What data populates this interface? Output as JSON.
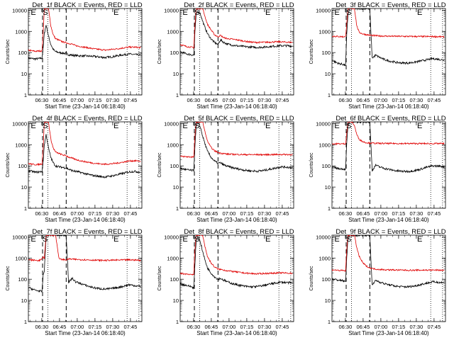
{
  "common": {
    "xlabel": "Start Time (23-Jan-14 06:18:40)",
    "ylabel": "Counts/sec",
    "xticks": [
      "06:30",
      "06:45",
      "07:00",
      "07:15",
      "07:30",
      "07:45"
    ],
    "xtick_minutes": [
      11.33,
      26.33,
      41.33,
      56.33,
      71.33,
      86.33
    ],
    "yticks": [
      "1",
      "10",
      "100",
      "1000",
      "10000"
    ],
    "yscale": "log",
    "ylim": [
      1,
      12000
    ],
    "xlim_minutes": [
      0,
      96
    ],
    "markers": {
      "dotted": [
        16.5,
        83.5,
        93.5
      ],
      "dashed": [
        12.0,
        32.0
      ]
    },
    "letters": [
      {
        "text": "E",
        "x": 2
      },
      {
        "text": "S",
        "x": 12
      },
      {
        "text": "E",
        "x": 72
      }
    ],
    "colors": {
      "black_series": "#000000",
      "red_series": "#e00000"
    }
  },
  "chart_data": [
    {
      "type": "line",
      "title": "Det_1f BLACK = Events, RED = LLD",
      "x_minutes": [
        0,
        3,
        6,
        9,
        11.5,
        12.5,
        13.5,
        15,
        17,
        19,
        21,
        23,
        26,
        29,
        32,
        34,
        37,
        40,
        45,
        50,
        55,
        60,
        65,
        70,
        75,
        80,
        85,
        90,
        95
      ],
      "series": [
        {
          "name": "Events",
          "color": "#000000",
          "values": [
            55,
            52,
            50,
            52,
            55,
            150,
            800,
            2000,
            600,
            240,
            140,
            110,
            100,
            95,
            90,
            80,
            75,
            72,
            70,
            68,
            66,
            62,
            58,
            62,
            70,
            78,
            85,
            80,
            75
          ]
        },
        {
          "name": "LLD",
          "color": "#e00000",
          "values": [
            130,
            120,
            115,
            118,
            120,
            800,
            12000,
            12000,
            12000,
            1800,
            700,
            450,
            380,
            320,
            290,
            270,
            250,
            210,
            190,
            170,
            150,
            140,
            130,
            140,
            150,
            165,
            180,
            180,
            170
          ]
        }
      ]
    },
    {
      "type": "line",
      "title": "Det_2f BLACK = Events, RED = LLD",
      "x_minutes": [
        0,
        3,
        6,
        9,
        11.5,
        12.5,
        13.5,
        15,
        17,
        19,
        21,
        23,
        26,
        29,
        32,
        34,
        37,
        40,
        45,
        50,
        55,
        60,
        65,
        70,
        75,
        80,
        85,
        90,
        95
      ],
      "series": [
        {
          "name": "Events",
          "color": "#000000",
          "values": [
            110,
            95,
            85,
            80,
            75,
            900,
            6000,
            9000,
            7000,
            3000,
            1500,
            800,
            450,
            300,
            240,
            400,
            300,
            250,
            220,
            200,
            190,
            180,
            175,
            180,
            190,
            200,
            210,
            210,
            200
          ]
        },
        {
          "name": "LLD",
          "color": "#e00000",
          "values": [
            240,
            210,
            190,
            180,
            170,
            2000,
            12000,
            12000,
            12000,
            12000,
            5000,
            2200,
            1200,
            700,
            550,
            650,
            500,
            450,
            420,
            380,
            340,
            310,
            300,
            305,
            310,
            320,
            320,
            310,
            300
          ]
        }
      ]
    },
    {
      "type": "line",
      "title": "Det_3f BLACK = Events, RED = LLD",
      "x_minutes": [
        0,
        3,
        6,
        9,
        11.5,
        12.5,
        13.5,
        15,
        17,
        19,
        21,
        23,
        26,
        29,
        32,
        34,
        37,
        40,
        45,
        50,
        55,
        60,
        65,
        70,
        75,
        80,
        85,
        90,
        95
      ],
      "series": [
        {
          "name": "Events",
          "color": "#000000",
          "values": [
            45,
            35,
            30,
            28,
            25,
            700,
            6000,
            12000,
            12000,
            12000,
            12000,
            12000,
            12000,
            12000,
            12000,
            55,
            75,
            60,
            45,
            38,
            34,
            32,
            32,
            35,
            40,
            45,
            52,
            48,
            44
          ]
        },
        {
          "name": "LLD",
          "color": "#e00000",
          "values": [
            600,
            580,
            570,
            560,
            560,
            2500,
            12000,
            12000,
            12000,
            12000,
            1800,
            900,
            760,
            700,
            660,
            640,
            620,
            610,
            600,
            590,
            585,
            580,
            575,
            575,
            570,
            570,
            570,
            560,
            550
          ]
        }
      ]
    },
    {
      "type": "line",
      "title": "Det_4f BLACK = Events, RED = LLD",
      "x_minutes": [
        0,
        3,
        6,
        9,
        11.5,
        12.5,
        13.5,
        15,
        17,
        19,
        21,
        23,
        26,
        29,
        32,
        34,
        37,
        40,
        45,
        50,
        55,
        60,
        65,
        70,
        75,
        80,
        85,
        90,
        95
      ],
      "series": [
        {
          "name": "Events",
          "color": "#000000",
          "values": [
            60,
            55,
            50,
            52,
            55,
            150,
            1000,
            3000,
            700,
            250,
            140,
            100,
            90,
            85,
            80,
            70,
            60,
            55,
            48,
            40,
            35,
            32,
            30,
            33,
            38,
            44,
            52,
            55,
            50
          ]
        },
        {
          "name": "LLD",
          "color": "#e00000",
          "values": [
            130,
            120,
            115,
            118,
            125,
            700,
            12000,
            12000,
            12000,
            1800,
            700,
            450,
            380,
            330,
            300,
            260,
            230,
            200,
            170,
            150,
            135,
            125,
            120,
            125,
            135,
            150,
            170,
            175,
            165
          ]
        }
      ]
    },
    {
      "type": "line",
      "title": "Det_5f BLACK = Events, RED = LLD",
      "x_minutes": [
        0,
        3,
        6,
        9,
        11.5,
        12.5,
        13.5,
        15,
        17,
        19,
        21,
        23,
        26,
        29,
        32,
        34,
        37,
        40,
        45,
        50,
        55,
        60,
        65,
        70,
        75,
        80,
        85,
        90,
        95
      ],
      "series": [
        {
          "name": "Events",
          "color": "#000000",
          "values": [
            75,
            70,
            65,
            62,
            60,
            900,
            7000,
            11000,
            7000,
            2500,
            1100,
            500,
            260,
            170,
            130,
            140,
            110,
            95,
            80,
            70,
            62,
            58,
            56,
            60,
            68,
            78,
            90,
            88,
            82
          ]
        },
        {
          "name": "LLD",
          "color": "#e00000",
          "values": [
            280,
            275,
            270,
            265,
            265,
            2500,
            12000,
            12000,
            12000,
            12000,
            4000,
            1500,
            750,
            520,
            430,
            400,
            380,
            360,
            350,
            345,
            340,
            340,
            338,
            338,
            340,
            342,
            345,
            345,
            340
          ]
        }
      ]
    },
    {
      "type": "line",
      "title": "Det_6f BLACK = Events, RED = LLD",
      "x_minutes": [
        0,
        3,
        6,
        9,
        11.5,
        12.5,
        13.5,
        15,
        17,
        19,
        21,
        23,
        26,
        29,
        32,
        34,
        37,
        40,
        45,
        50,
        55,
        60,
        65,
        70,
        75,
        80,
        85,
        90,
        95
      ],
      "series": [
        {
          "name": "Events",
          "color": "#000000",
          "values": [
            85,
            80,
            75,
            72,
            70,
            1200,
            8000,
            12000,
            12000,
            12000,
            12000,
            12000,
            12000,
            12000,
            12000,
            60,
            110,
            90,
            75,
            65,
            58,
            55,
            55,
            60,
            70,
            85,
            100,
            98,
            90
          ]
        },
        {
          "name": "LLD",
          "color": "#e00000",
          "values": [
            1100,
            1100,
            1100,
            1100,
            1100,
            3500,
            12000,
            12000,
            12000,
            8000,
            3000,
            1800,
            1400,
            1250,
            1200,
            1180,
            1160,
            1150,
            1140,
            1140,
            1140,
            1130,
            1130,
            1130,
            1130,
            1130,
            1130,
            1130,
            1130
          ]
        }
      ]
    },
    {
      "type": "line",
      "title": "Det_7f BLACK = Events, RED = LLD",
      "x_minutes": [
        0,
        3,
        6,
        9,
        11.5,
        12.5,
        13.5,
        15,
        17,
        19,
        21,
        23,
        26,
        29,
        32,
        34,
        37,
        40,
        45,
        50,
        55,
        60,
        65,
        70,
        75,
        80,
        85,
        90,
        95
      ],
      "series": [
        {
          "name": "Events",
          "color": "#000000",
          "values": [
            40,
            35,
            30,
            28,
            26,
            150,
            250,
            12000,
            12000,
            12000,
            12000,
            12000,
            12000,
            12000,
            12000,
            70,
            110,
            75,
            60,
            48,
            40,
            36,
            34,
            36,
            40,
            46,
            55,
            50,
            45
          ]
        },
        {
          "name": "LLD",
          "color": "#e00000",
          "values": [
            850,
            800,
            780,
            760,
            900,
            1100,
            1000,
            12000,
            12000,
            12000,
            12000,
            12000,
            900,
            850,
            820,
            900,
            880,
            860,
            840,
            820,
            800,
            780,
            770,
            790,
            800,
            810,
            820,
            810,
            780
          ]
        }
      ]
    },
    {
      "type": "line",
      "title": "Det_8f BLACK = Events, RED = LLD",
      "x_minutes": [
        0,
        3,
        6,
        9,
        11.5,
        12.5,
        13.5,
        15,
        17,
        19,
        21,
        23,
        26,
        29,
        32,
        34,
        37,
        40,
        45,
        50,
        55,
        60,
        65,
        70,
        75,
        80,
        85,
        90,
        95
      ],
      "series": [
        {
          "name": "Events",
          "color": "#000000",
          "values": [
            60,
            55,
            50,
            45,
            40,
            500,
            6000,
            11000,
            6000,
            2000,
            800,
            350,
            200,
            130,
            100,
            110,
            90,
            75,
            60,
            52,
            46,
            44,
            45,
            50,
            58,
            65,
            72,
            70,
            66
          ]
        },
        {
          "name": "LLD",
          "color": "#e00000",
          "values": [
            190,
            180,
            175,
            170,
            170,
            2500,
            12000,
            12000,
            12000,
            12000,
            3500,
            1200,
            600,
            380,
            300,
            290,
            270,
            250,
            230,
            210,
            195,
            185,
            180,
            185,
            190,
            195,
            200,
            195,
            190
          ]
        }
      ]
    },
    {
      "type": "line",
      "title": "Det_9f BLACK = Events, RED = LLD",
      "x_minutes": [
        0,
        3,
        6,
        9,
        11.5,
        12.5,
        13.5,
        15,
        17,
        19,
        21,
        23,
        26,
        29,
        32,
        34,
        37,
        40,
        45,
        50,
        55,
        60,
        65,
        70,
        75,
        80,
        85,
        90,
        95
      ],
      "series": [
        {
          "name": "Events",
          "color": "#000000",
          "values": [
            100,
            95,
            90,
            85,
            80,
            1000,
            8000,
            12000,
            12000,
            12000,
            12000,
            12000,
            12000,
            12000,
            12000,
            50,
            90,
            75,
            60,
            52,
            46,
            44,
            44,
            48,
            56,
            65,
            75,
            72,
            68
          ]
        },
        {
          "name": "LLD",
          "color": "#e00000",
          "values": [
            280,
            270,
            260,
            255,
            250,
            2500,
            12000,
            12000,
            12000,
            12000,
            3000,
            1200,
            600,
            420,
            340,
            320,
            300,
            290,
            280,
            275,
            270,
            268,
            265,
            265,
            268,
            270,
            270,
            268,
            265
          ]
        }
      ]
    }
  ]
}
